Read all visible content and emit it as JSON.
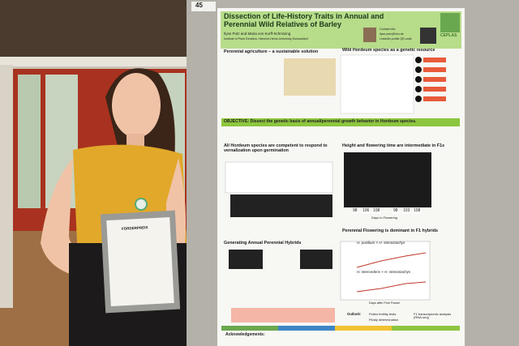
{
  "board_number": "45",
  "poster": {
    "title": "Dissection of Life-History Traits in Annual and Perennial Wild Relatives of Barley",
    "authors": "Ilyse Putz and Maria von Korff-Schmising",
    "affiliation": "Institute of Plant Genetics, Heinrich-Heine-University Duesseldorf",
    "contact": [
      "Contact info:",
      "ilyse.putz@hhu.de",
      "LinkedIn profile QR-code"
    ],
    "logo": "CEPLAS",
    "sections": [
      "Perennial agriculture – a sustainable solution",
      "Wild Hordeum species as a genetic resource",
      "All Hordeum species are competent to respond to vernalization upon germination",
      "Height and flowering time are intermediate in F1s",
      "Generating Annual Perennial Hybrids",
      "Perennial Flowering is dominant in F1 hybrids"
    ],
    "objective": "OBJECTIVE: Dissect the genetic basis of annual/perennial growth behavior in Hordeum species.",
    "figure_labels": [
      "98",
      "106",
      "108",
      "98",
      "103",
      "108",
      "Days to Flowering",
      "H. pusillum × H. stenostachys",
      "H. intercedens × H. stenostachys",
      "Days after First Flower"
    ],
    "outlook": [
      "Outlook:",
      "Pollen fertility tests",
      "Ploidy determination",
      "F1 transcriptomic analysis (RNA-seq)"
    ],
    "acknowledgements": "Acknowledgements:"
  },
  "certificate": {
    "title": "FÖRDERPREIS"
  }
}
